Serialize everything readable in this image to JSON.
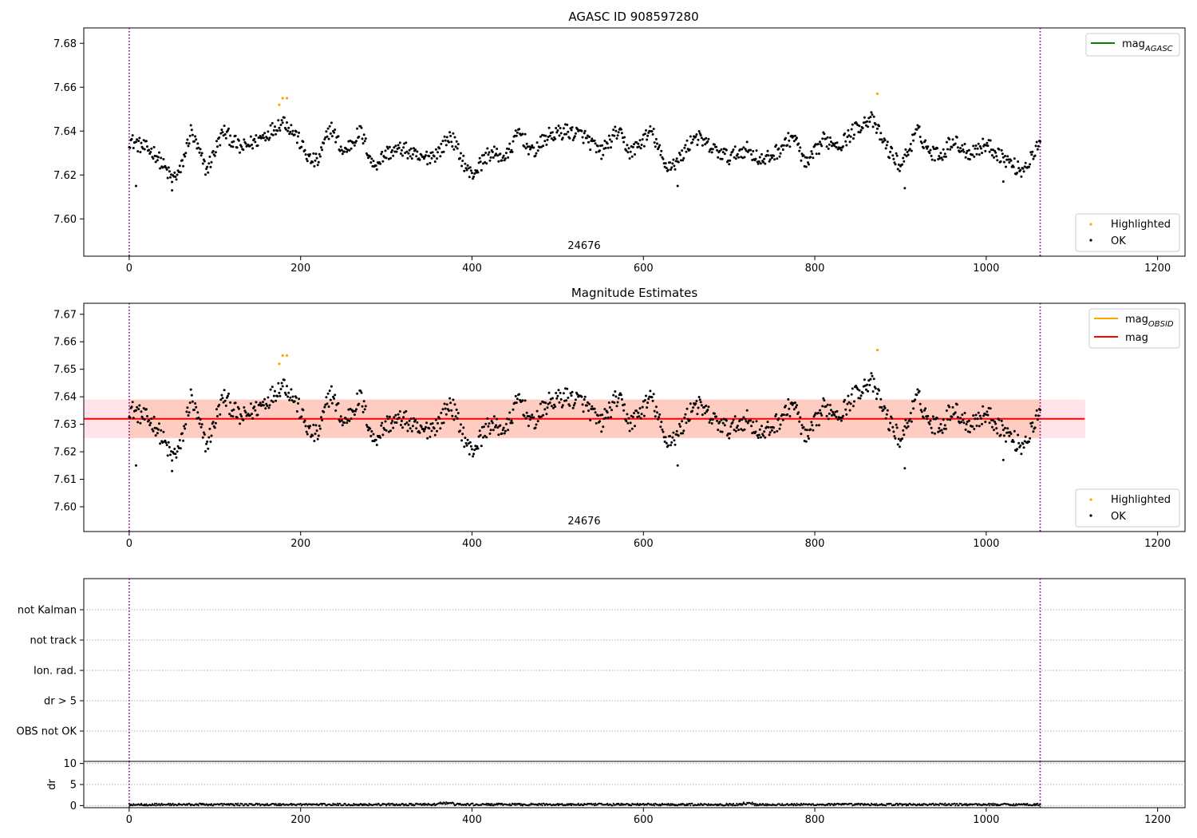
{
  "figure": {
    "title": "AGASC ID 908597280",
    "panel2_title": "Magnitude Estimates"
  },
  "colors": {
    "ok_points": "#000000",
    "highlighted_points": "#ffa500",
    "mag_agasc_line": "#008000",
    "mag_line": "#ff0000",
    "mag_obsid_line": "#ffa500",
    "mag_band_fill": "#ffc0cb",
    "obsid_band_fill": "#ffa07a",
    "vertical_marker": "#800080",
    "grid": "#b0b0b0"
  },
  "chart_data": [
    {
      "type": "scatter",
      "title": "AGASC ID 908597280",
      "xlim": [
        -53,
        1232
      ],
      "ylim": [
        7.583,
        7.687
      ],
      "xticks": [
        "0",
        "200",
        "400",
        "600",
        "800",
        "1000",
        "1200"
      ],
      "yticks": [
        "7.60",
        "7.62",
        "7.64",
        "7.66",
        "7.68"
      ],
      "obsid_label": "24676",
      "vlines_x": [
        0,
        1063
      ],
      "legend_top": {
        "placement": "top-right",
        "entries": [
          "mag",
          "AGASC"
        ]
      },
      "legend_bottom": {
        "placement": "bottom-right",
        "entries": [
          "Highlighted",
          "OK"
        ]
      },
      "ok_series": {
        "name": "OK",
        "x_range": [
          0,
          1063
        ],
        "n_points": 1064,
        "segments_xy": [
          [
            0,
            7.636
          ],
          [
            10,
            7.634
          ],
          [
            30,
            7.63
          ],
          [
            50,
            7.618
          ],
          [
            60,
            7.622
          ],
          [
            72,
            7.64
          ],
          [
            90,
            7.622
          ],
          [
            110,
            7.64
          ],
          [
            130,
            7.632
          ],
          [
            150,
            7.636
          ],
          [
            165,
            7.64
          ],
          [
            180,
            7.645
          ],
          [
            195,
            7.638
          ],
          [
            210,
            7.627
          ],
          [
            220,
            7.626
          ],
          [
            235,
            7.642
          ],
          [
            250,
            7.63
          ],
          [
            270,
            7.64
          ],
          [
            285,
            7.624
          ],
          [
            300,
            7.63
          ],
          [
            320,
            7.632
          ],
          [
            340,
            7.627
          ],
          [
            360,
            7.63
          ],
          [
            375,
            7.638
          ],
          [
            395,
            7.622
          ],
          [
            400,
            7.62
          ],
          [
            420,
            7.63
          ],
          [
            440,
            7.628
          ],
          [
            455,
            7.64
          ],
          [
            470,
            7.63
          ],
          [
            490,
            7.638
          ],
          [
            510,
            7.64
          ],
          [
            530,
            7.638
          ],
          [
            550,
            7.63
          ],
          [
            570,
            7.64
          ],
          [
            585,
            7.63
          ],
          [
            610,
            7.64
          ],
          [
            625,
            7.624
          ],
          [
            640,
            7.626
          ],
          [
            660,
            7.638
          ],
          [
            680,
            7.632
          ],
          [
            700,
            7.628
          ],
          [
            720,
            7.632
          ],
          [
            740,
            7.626
          ],
          [
            760,
            7.632
          ],
          [
            775,
            7.638
          ],
          [
            790,
            7.624
          ],
          [
            810,
            7.636
          ],
          [
            830,
            7.634
          ],
          [
            850,
            7.642
          ],
          [
            865,
            7.646
          ],
          [
            885,
            7.632
          ],
          [
            900,
            7.624
          ],
          [
            920,
            7.64
          ],
          [
            935,
            7.63
          ],
          [
            950,
            7.63
          ],
          [
            960,
            7.636
          ],
          [
            980,
            7.63
          ],
          [
            1000,
            7.634
          ],
          [
            1020,
            7.628
          ],
          [
            1040,
            7.622
          ],
          [
            1050,
            7.626
          ],
          [
            1063,
            7.634
          ]
        ],
        "noise_amplitude": 0.0035,
        "dip_points": [
          [
            8,
            7.615
          ],
          [
            50,
            7.613
          ],
          [
            905,
            7.614
          ],
          [
            640,
            7.615
          ],
          [
            1020,
            7.617
          ]
        ]
      },
      "highlighted_series": {
        "name": "Highlighted",
        "points": [
          [
            175,
            7.652
          ],
          [
            179,
            7.655
          ],
          [
            184,
            7.655
          ],
          [
            873,
            7.657
          ]
        ]
      }
    },
    {
      "type": "scatter",
      "title": "Magnitude Estimates",
      "xlim": [
        -53,
        1232
      ],
      "ylim": [
        7.591,
        7.674
      ],
      "xticks": [
        "0",
        "200",
        "400",
        "600",
        "800",
        "1000",
        "1200"
      ],
      "yticks": [
        "7.60",
        "7.61",
        "7.62",
        "7.63",
        "7.64",
        "7.65",
        "7.66",
        "7.67"
      ],
      "obsid_label": "24676",
      "vlines_x": [
        0,
        1063
      ],
      "mag_value": 7.632,
      "mag_band": [
        7.625,
        7.639
      ],
      "mag_band_x": [
        -53,
        1115
      ],
      "obsid_band": [
        7.625,
        7.639
      ],
      "obsid_band_x": [
        0,
        1063
      ],
      "legend_top": {
        "placement": "top-right",
        "entries": [
          "mag",
          "OBSID",
          "mag"
        ]
      },
      "legend_bottom": {
        "placement": "bottom-right",
        "entries": [
          "Highlighted",
          "OK"
        ]
      }
    },
    {
      "type": "scatter",
      "title": "",
      "xlim": [
        -53,
        1232
      ],
      "categories": [
        "not Kalman",
        "not track",
        "Ion. rad.",
        "dr > 5",
        "OBS not OK"
      ],
      "vlines_x": [
        0,
        1063
      ],
      "flag_counts": [
        0,
        0,
        0,
        0,
        0
      ]
    },
    {
      "type": "scatter",
      "title": "",
      "xlim": [
        -53,
        1232
      ],
      "ylim": [
        -0.5,
        10.5
      ],
      "xticks": [
        "0",
        "200",
        "400",
        "600",
        "800",
        "1000",
        "1200"
      ],
      "yticks": [
        "0",
        "5",
        "10"
      ],
      "ylabel": "dr",
      "vlines_x": [
        0,
        1063
      ],
      "dr_series": {
        "x_range": [
          0,
          1063
        ],
        "base": 0.25,
        "amplitude": 0.25
      }
    }
  ]
}
